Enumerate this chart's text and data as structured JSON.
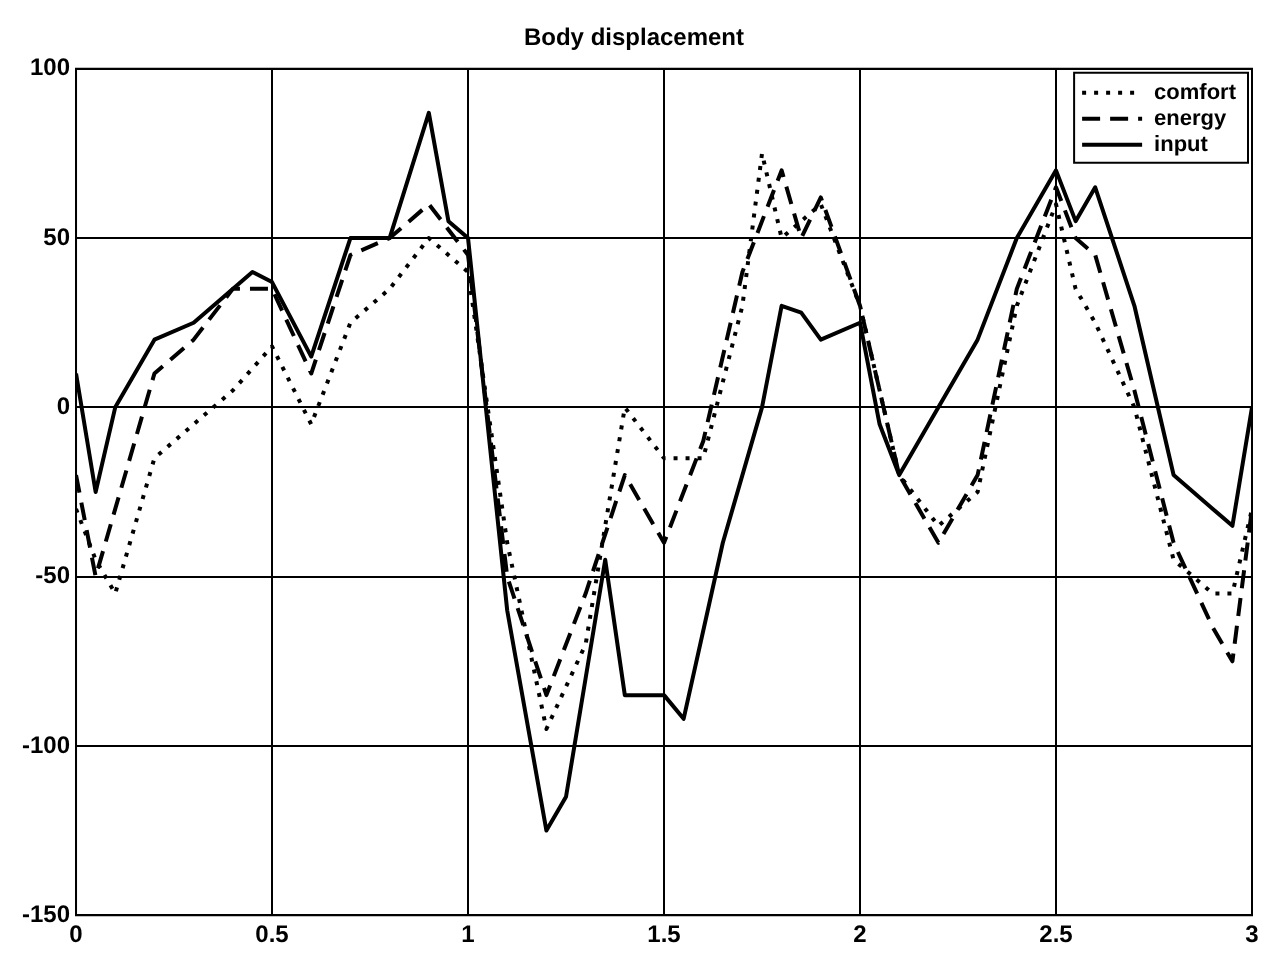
{
  "chart_data": {
    "type": "line",
    "title": "Body displacement",
    "xlim": [
      0,
      3
    ],
    "xticks": [
      0,
      0.5,
      1,
      1.5,
      2,
      2.5,
      3
    ],
    "ylim": [
      -150,
      100
    ],
    "yticks": [
      -150,
      -100,
      -50,
      0,
      50,
      100
    ],
    "grid": true,
    "legend": "top right",
    "marker": "none",
    "series": [
      {
        "name": "comfort",
        "color": "#000000",
        "line_style": "dotted",
        "x": [
          0,
          0.05,
          0.1,
          0.2,
          0.3,
          0.4,
          0.5,
          0.6,
          0.7,
          0.8,
          0.9,
          1.0,
          1.1,
          1.2,
          1.3,
          1.4,
          1.5,
          1.6,
          1.7,
          1.75,
          1.8,
          1.9,
          2.0,
          2.1,
          2.2,
          2.3,
          2.4,
          2.5,
          2.55,
          2.6,
          2.7,
          2.8,
          2.9,
          2.95,
          3.0
        ],
        "values": [
          -30,
          -45,
          -55,
          -15,
          -5,
          5,
          18,
          -5,
          25,
          35,
          50,
          40,
          -40,
          -95,
          -70,
          0,
          -15,
          -15,
          30,
          75,
          50,
          60,
          30,
          -20,
          -35,
          -25,
          30,
          60,
          35,
          25,
          0,
          -45,
          -55,
          -55,
          -30
        ]
      },
      {
        "name": "energy",
        "color": "#000000",
        "line_style": "dashed",
        "x": [
          0,
          0.05,
          0.1,
          0.2,
          0.3,
          0.4,
          0.5,
          0.6,
          0.7,
          0.8,
          0.9,
          1.0,
          1.1,
          1.2,
          1.3,
          1.4,
          1.5,
          1.6,
          1.7,
          1.8,
          1.85,
          1.9,
          2.0,
          2.1,
          2.2,
          2.3,
          2.4,
          2.5,
          2.55,
          2.6,
          2.7,
          2.8,
          2.9,
          2.95,
          3.0
        ],
        "values": [
          -20,
          -50,
          -30,
          10,
          20,
          35,
          35,
          10,
          45,
          50,
          60,
          45,
          -50,
          -85,
          -55,
          -20,
          -40,
          -10,
          40,
          70,
          50,
          62,
          30,
          -20,
          -40,
          -20,
          35,
          65,
          50,
          45,
          5,
          -40,
          -65,
          -75,
          -30
        ]
      },
      {
        "name": "input",
        "color": "#000000",
        "line_style": "solid",
        "x": [
          0,
          0.05,
          0.1,
          0.2,
          0.3,
          0.45,
          0.5,
          0.6,
          0.7,
          0.8,
          0.9,
          0.95,
          1.0,
          1.1,
          1.2,
          1.25,
          1.3,
          1.35,
          1.4,
          1.5,
          1.55,
          1.65,
          1.75,
          1.8,
          1.85,
          1.9,
          2.0,
          2.05,
          2.1,
          2.2,
          2.3,
          2.4,
          2.5,
          2.55,
          2.6,
          2.7,
          2.8,
          2.9,
          2.95,
          3.0
        ],
        "values": [
          10,
          -25,
          0,
          20,
          25,
          40,
          37,
          15,
          50,
          50,
          87,
          55,
          50,
          -60,
          -125,
          -115,
          -80,
          -45,
          -85,
          -85,
          -92,
          -40,
          0,
          30,
          28,
          20,
          25,
          -5,
          -20,
          0,
          20,
          50,
          70,
          55,
          65,
          30,
          -20,
          -30,
          -35,
          0
        ]
      }
    ]
  }
}
